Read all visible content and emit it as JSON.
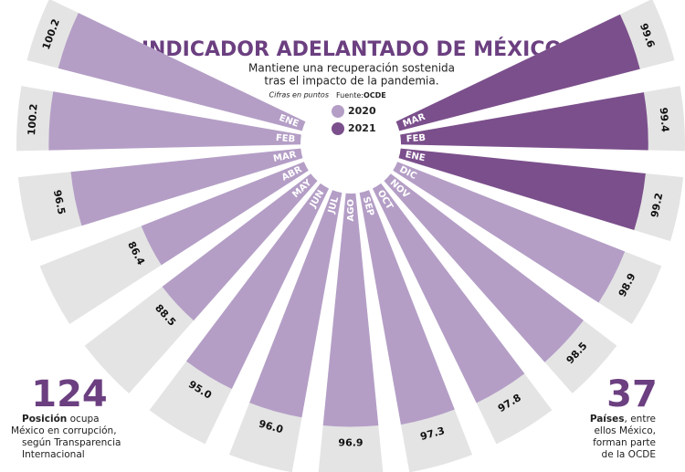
{
  "chart_data": {
    "type": "radial_bar",
    "title": "INDICADOR ADELANTADO DE MÉXICO",
    "subtitle": [
      "Mantiene una recuperación sostenida",
      "tras el impacto de la pandemia."
    ],
    "note": "Cifras en puntos",
    "source_label": "Fuente:",
    "source": "OCDE",
    "categories": [
      "ENE",
      "FEB",
      "MAR",
      "ABR",
      "MAY",
      "JUN",
      "JUL",
      "AGO",
      "SEP",
      "OCT",
      "NOV",
      "DIC",
      "ENE",
      "FEB",
      "MAR"
    ],
    "series": [
      {
        "name": "2020",
        "color": "#b49ec6",
        "values": [
          100.2,
          100.2,
          96.5,
          86.4,
          88.5,
          95.0,
          96.0,
          96.9,
          97.3,
          97.8,
          98.5,
          98.9,
          null,
          null,
          null
        ],
        "value_labels": [
          "100.2",
          "100.2",
          "96.5",
          "86.4",
          "88.5",
          "95.0",
          "96.0",
          "96.9",
          "97.3",
          "97.8",
          "98.5",
          "98.9",
          null,
          null,
          null
        ]
      },
      {
        "name": "2021",
        "color": "#7b4f8c",
        "values": [
          null,
          null,
          null,
          null,
          null,
          null,
          null,
          null,
          null,
          null,
          null,
          null,
          99.2,
          99.4,
          99.6
        ],
        "value_labels": [
          null,
          null,
          null,
          null,
          null,
          null,
          null,
          null,
          null,
          null,
          null,
          null,
          "99.2",
          "99.4",
          "99.6"
        ]
      }
    ],
    "ylim": [
      55,
      106
    ],
    "track_color": "#e4e4e4",
    "annotations": [
      {
        "number": "124",
        "bold": "Posición",
        "lines": [
          " ocupa",
          "México en corrupción,",
          "según Transparencia",
          "Internacional"
        ]
      },
      {
        "number": "37",
        "bold": "Países",
        "lines": [
          ", entre",
          "ellos México,",
          "forman parte",
          "de la OCDE"
        ]
      }
    ]
  }
}
